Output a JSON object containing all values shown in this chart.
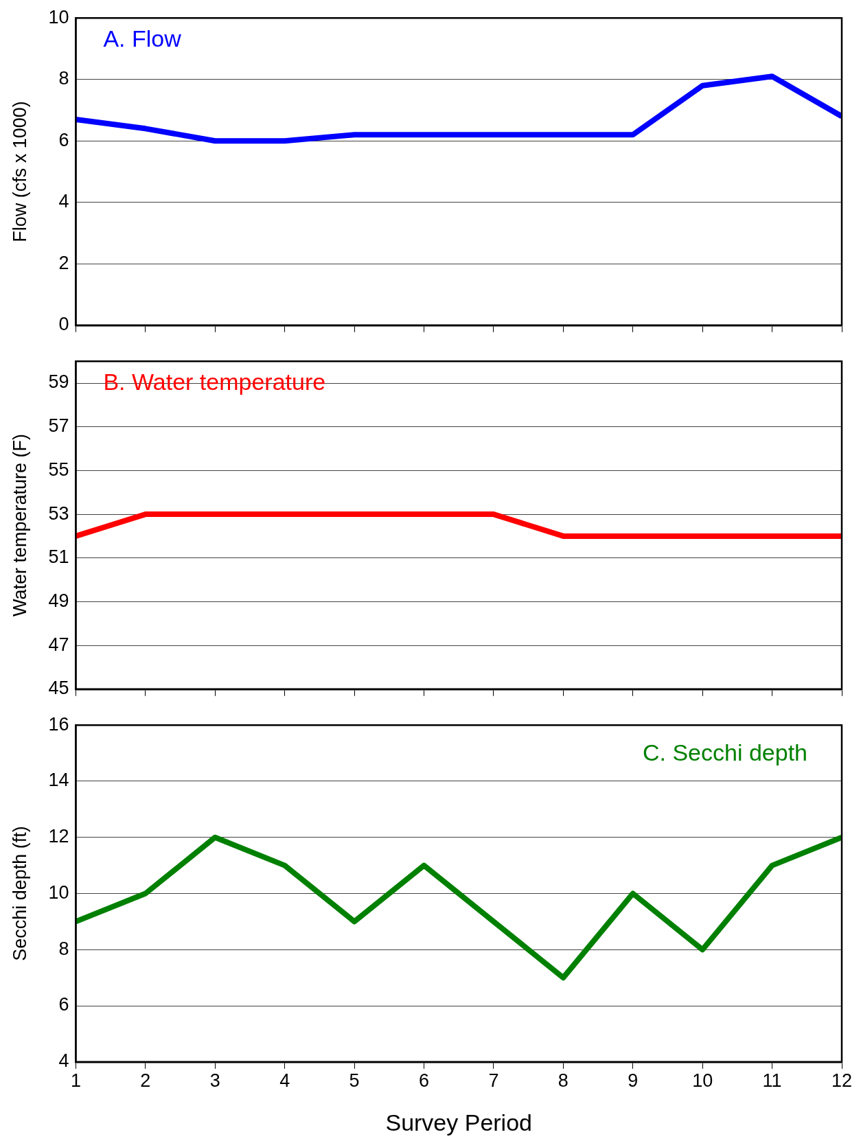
{
  "chart_data": [
    {
      "type": "line",
      "title": "A. Flow",
      "ylabel": "Flow (cfs x 1000)",
      "x": [
        1,
        2,
        3,
        4,
        5,
        6,
        7,
        8,
        9,
        10,
        11,
        12
      ],
      "xlim": [
        1,
        12
      ],
      "xticks": [
        1,
        2,
        3,
        4,
        5,
        6,
        7,
        8,
        9,
        10,
        11,
        12
      ],
      "ylim": [
        0,
        10
      ],
      "yticks": [
        0,
        2,
        4,
        6,
        8,
        10
      ],
      "grid": "y",
      "tick_labels": "y",
      "marker": "none",
      "series": [
        {
          "color": "#0000ff",
          "values": [
            6.7,
            6.4,
            6.0,
            6.0,
            6.2,
            6.2,
            6.2,
            6.2,
            6.2,
            7.8,
            8.1,
            6.8
          ]
        }
      ]
    },
    {
      "type": "line",
      "title": "B. Water temperature",
      "ylabel": "Water temperature (F)",
      "x": [
        1,
        2,
        3,
        4,
        5,
        6,
        7,
        8,
        9,
        10,
        11,
        12
      ],
      "xlim": [
        1,
        12
      ],
      "xticks": [
        1,
        2,
        3,
        4,
        5,
        6,
        7,
        8,
        9,
        10,
        11,
        12
      ],
      "ylim": [
        45,
        60
      ],
      "yticks": [
        45,
        47,
        49,
        51,
        53,
        55,
        57,
        59
      ],
      "grid": "y",
      "tick_labels": "y",
      "marker": "none",
      "series": [
        {
          "color": "#ff0000",
          "values": [
            52,
            53,
            53,
            53,
            53,
            53,
            53,
            52,
            52,
            52,
            52,
            52
          ]
        }
      ]
    },
    {
      "type": "line",
      "title": "C. Secchi depth",
      "xlabel": "Survey Period",
      "ylabel": "Secchi depth (ft)",
      "x": [
        1,
        2,
        3,
        4,
        5,
        6,
        7,
        8,
        9,
        10,
        11,
        12
      ],
      "xlim": [
        1,
        12
      ],
      "xticks": [
        1,
        2,
        3,
        4,
        5,
        6,
        7,
        8,
        9,
        10,
        11,
        12
      ],
      "ylim": [
        4,
        16
      ],
      "yticks": [
        4,
        6,
        8,
        10,
        12,
        14,
        16
      ],
      "grid": "y",
      "marker": "none",
      "series": [
        {
          "color": "#008000",
          "values": [
            9,
            10,
            12,
            11,
            9,
            11,
            9,
            7,
            10,
            8,
            11,
            12
          ]
        }
      ]
    }
  ]
}
